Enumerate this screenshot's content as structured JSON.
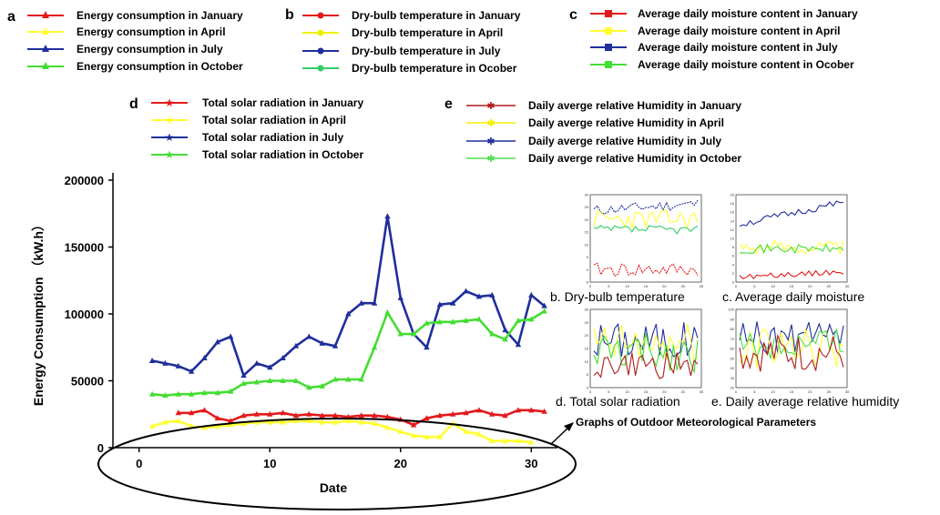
{
  "colors": {
    "january": "#e31a1c",
    "april": "#ffff33",
    "july": "#1f2e9c",
    "october": "#44dd33",
    "temp_april": "#f0f000",
    "temp_october": "#33cc66",
    "humid_january": "#b01c1c",
    "humid_october": "#55dd55"
  },
  "legends": {
    "a": {
      "letter": "a",
      "items": [
        "Energy consumption in January",
        "Energy consumption in April",
        "Energy consumption in July",
        "Energy consumption in October"
      ]
    },
    "b": {
      "letter": "b",
      "items": [
        "Dry-bulb temperature in January",
        "Dry-bulb temperature in April",
        "Dry-bulb temperature in July",
        "Dry-bulb temperature in Ocober"
      ]
    },
    "c": {
      "letter": "c",
      "items": [
        "Average daily moisture content in January",
        "Average daily moisture content in  April",
        "Average daily moisture content in July",
        "Average daily moisture content in Ocober"
      ]
    },
    "d": {
      "letter": "d",
      "items": [
        "Total solar radiation in January",
        "Total solar radiation in April",
        "Total solar radiation in July",
        "Total solar radiation in October"
      ]
    },
    "e": {
      "letter": "e",
      "items": [
        "Daily averge relative Humidity in January",
        "Daily averge relative Humidity in April",
        "Daily averge relative Humidity in July",
        "Daily averge relative Humidity in October"
      ]
    }
  },
  "subplots": {
    "b_caption": "b. Dry-bulb temperature",
    "c_caption": "c. Average daily moisture",
    "d_caption": "d. Total solar radiation",
    "e_caption": "e. Daily average relative humidity",
    "group_caption": "Graphs of Outdoor Meteorological Parameters",
    "b_yticks": [
      "-5",
      "0",
      "5",
      "10",
      "15",
      "20",
      "25",
      "30"
    ],
    "c_yticks": [
      "0",
      "2",
      "4",
      "6",
      "8",
      "10",
      "12",
      "14",
      "16",
      "18",
      "20"
    ],
    "d_yticks": [
      "0",
      "5",
      "10",
      "15",
      "20",
      "25",
      "30"
    ],
    "e_yticks": [
      "20",
      "30",
      "40",
      "50",
      "60",
      "70",
      "80",
      "90",
      "100"
    ],
    "xticks": [
      "0",
      "5",
      "10",
      "15",
      "20",
      "25",
      "30"
    ]
  },
  "chart_data": {
    "type": "line",
    "xlabel": "Date",
    "ylabel": "Energy Consumption （kW.h）",
    "xlim": [
      -2,
      32
    ],
    "ylim": [
      0,
      200000
    ],
    "xticks": [
      0,
      10,
      20,
      30
    ],
    "yticks": [
      0,
      50000,
      100000,
      150000,
      200000
    ],
    "ytick_labels": [
      "0",
      "50000",
      "100000",
      "150000",
      "200000"
    ],
    "series": [
      {
        "name": "Energy consumption in January",
        "color_key": "january",
        "x": [
          3,
          4,
          5,
          6,
          7,
          8,
          9,
          10,
          11,
          12,
          13,
          14,
          15,
          16,
          17,
          18,
          19,
          20,
          21,
          22,
          23,
          24,
          25,
          26,
          27,
          28,
          29,
          30,
          31
        ],
        "values": [
          26000,
          26000,
          28000,
          22000,
          20000,
          24000,
          25000,
          25000,
          26000,
          24000,
          25000,
          24000,
          24000,
          23000,
          24000,
          24000,
          23000,
          21000,
          17000,
          22000,
          24000,
          25000,
          26000,
          28000,
          25000,
          24000,
          28000,
          28000,
          27000
        ]
      },
      {
        "name": "Energy consumption in April",
        "color_key": "april",
        "x": [
          1,
          2,
          3,
          4,
          5,
          6,
          7,
          8,
          9,
          10,
          11,
          12,
          13,
          14,
          15,
          16,
          17,
          18,
          19,
          20,
          21,
          22,
          23,
          24,
          25,
          26,
          27,
          28,
          29,
          30
        ],
        "values": [
          16000,
          19000,
          20000,
          16000,
          15000,
          16000,
          17000,
          18000,
          19000,
          19000,
          19000,
          20000,
          20000,
          19000,
          19000,
          20000,
          19000,
          18000,
          15000,
          12000,
          9000,
          8000,
          8000,
          18000,
          12000,
          10000,
          5000,
          5000,
          5000,
          4000
        ]
      },
      {
        "name": "Energy consumption in July",
        "color_key": "july",
        "x": [
          1,
          2,
          3,
          4,
          5,
          6,
          7,
          8,
          9,
          10,
          11,
          12,
          13,
          14,
          15,
          16,
          17,
          18,
          19,
          20,
          21,
          22,
          23,
          24,
          25,
          26,
          27,
          28,
          29,
          30,
          31
        ],
        "values": [
          65000,
          63000,
          61000,
          57000,
          67000,
          79000,
          83000,
          54000,
          63000,
          60000,
          67000,
          76000,
          83000,
          78000,
          76000,
          100000,
          108000,
          108000,
          173000,
          112000,
          85000,
          75000,
          107000,
          108000,
          117000,
          113000,
          114000,
          88000,
          77000,
          114000,
          106000
        ]
      },
      {
        "name": "Energy consumption in October",
        "color_key": "october",
        "x": [
          1,
          2,
          3,
          4,
          5,
          6,
          7,
          8,
          9,
          10,
          11,
          12,
          13,
          14,
          15,
          16,
          17,
          18,
          19,
          20,
          21,
          22,
          23,
          24,
          25,
          26,
          27,
          28,
          29,
          30,
          31
        ],
        "values": [
          40000,
          39000,
          40000,
          40000,
          41000,
          41000,
          42000,
          48000,
          49000,
          50000,
          50000,
          50000,
          45000,
          46000,
          51000,
          51000,
          51000,
          75000,
          101000,
          85000,
          85000,
          93000,
          94000,
          94000,
          95000,
          96000,
          85000,
          81000,
          95000,
          96000,
          102000
        ]
      }
    ]
  }
}
